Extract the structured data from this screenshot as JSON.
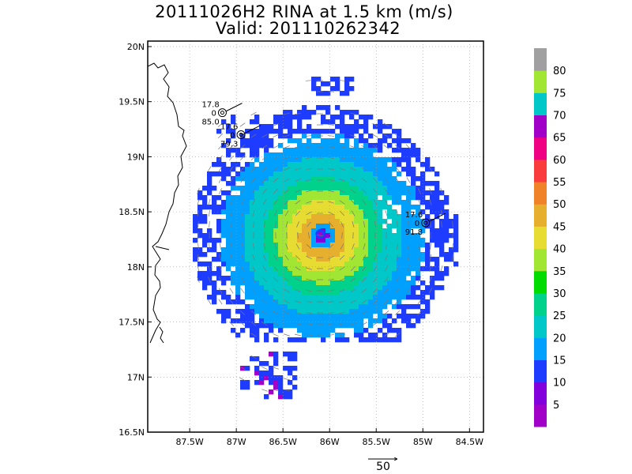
{
  "header": {
    "title": "20111026H2 RINA at 1.5 km (m/s)",
    "valid": "Valid: 201110262342"
  },
  "chart_data": {
    "type": "heatmap",
    "title": "20111026H2 RINA at 1.5 km (m/s)",
    "subtitle": "Valid: 201110262342",
    "xlabel": "",
    "ylabel": "",
    "xlim": [
      -87.95,
      -84.35
    ],
    "ylim": [
      16.5,
      20.05
    ],
    "x_ticks": [
      -87.5,
      -87.0,
      -86.5,
      -86.0,
      -85.5,
      -85.0,
      -84.5
    ],
    "x_tick_labels": [
      "87.5W",
      "87W",
      "86.5W",
      "86W",
      "85.5W",
      "85W",
      "84.5W"
    ],
    "y_ticks": [
      16.5,
      17.0,
      17.5,
      18.0,
      18.5,
      19.0,
      19.5,
      20.0
    ],
    "y_tick_labels": [
      "16.5N",
      "17N",
      "17.5N",
      "18N",
      "18.5N",
      "19N",
      "19.5N",
      "20N"
    ],
    "grid": true,
    "storm_center": {
      "lon": -86.1,
      "lat": 18.3
    },
    "colorbar": {
      "levels": [
        5,
        10,
        15,
        20,
        25,
        30,
        35,
        40,
        45,
        50,
        55,
        60,
        65,
        70,
        75,
        80
      ],
      "labels": [
        "5",
        "10",
        "15",
        "20",
        "25",
        "30",
        "35",
        "40",
        "45",
        "50",
        "55",
        "60",
        "65",
        "70",
        "75",
        "80"
      ],
      "colors": [
        "#a000c8",
        "#8200dc",
        "#1e3cff",
        "#00a0ff",
        "#00c8c8",
        "#00d28c",
        "#00dc00",
        "#a0e632",
        "#e6dc32",
        "#e6af2d",
        "#f08228",
        "#fa3c3c",
        "#f00082",
        "#a000c8",
        "#00c8c8",
        "#a0e632",
        "#a0a0a0"
      ]
    },
    "stations": [
      {
        "lon": -87.15,
        "lat": 19.4,
        "labels": [
          "17.8",
          "0",
          "85.0"
        ]
      },
      {
        "lon": -86.95,
        "lat": 19.2,
        "labels": [
          "17.6",
          "0",
          "79.3"
        ]
      },
      {
        "lon": -84.97,
        "lat": 18.4,
        "labels": [
          "17.6",
          "0",
          "91.8"
        ]
      }
    ],
    "reference_vector": {
      "value": 50,
      "label": "50"
    }
  }
}
